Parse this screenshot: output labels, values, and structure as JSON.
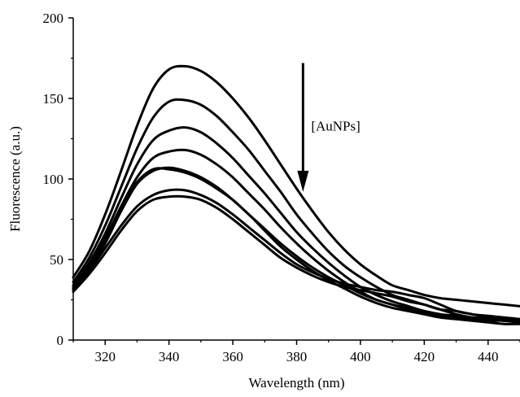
{
  "chart_data": {
    "type": "line",
    "title": "",
    "xlabel": "Wavelength (nm)",
    "ylabel": "Fluorescence (a.u.)",
    "xlim": [
      310,
      450
    ],
    "ylim": [
      0,
      200
    ],
    "xticks": [
      320,
      340,
      360,
      380,
      400,
      420,
      440
    ],
    "yticks": [
      0,
      50,
      100,
      150,
      200
    ],
    "grid": false,
    "legend": "none",
    "annotation": {
      "text": "[AuNPs]",
      "arrow_x": 382,
      "arrow_y_start": 172,
      "arrow_y_end": 92
    },
    "x": [
      310,
      315,
      320,
      325,
      330,
      335,
      340,
      345,
      350,
      355,
      360,
      365,
      370,
      375,
      380,
      385,
      390,
      395,
      400,
      405,
      410,
      415,
      420,
      425,
      430,
      435,
      440,
      445,
      450
    ],
    "series": [
      {
        "values": [
          39,
          55,
          78,
          105,
          133,
          156,
          168,
          170,
          167,
          160,
          150,
          138,
          124,
          109,
          94,
          80,
          67,
          56,
          47,
          40,
          34,
          31,
          28,
          26,
          25,
          24,
          23,
          22,
          21
        ]
      },
      {
        "values": [
          36,
          51,
          71,
          95,
          119,
          138,
          148,
          149,
          146,
          139,
          129,
          118,
          105,
          92,
          78,
          66,
          55,
          46,
          39,
          33,
          28,
          25,
          22,
          19,
          18,
          16,
          15,
          14,
          13
        ]
      },
      {
        "values": [
          34,
          48,
          66,
          88,
          109,
          124,
          130,
          132,
          129,
          122,
          113,
          102,
          91,
          79,
          67,
          57,
          48,
          40,
          33,
          28,
          24,
          21,
          18,
          16,
          15,
          14,
          13,
          12,
          12
        ]
      },
      {
        "values": [
          33,
          46,
          63,
          83,
          101,
          113,
          117,
          118,
          115,
          109,
          101,
          91,
          81,
          70,
          60,
          51,
          43,
          36,
          30,
          25,
          22,
          19,
          17,
          15,
          14,
          13,
          12,
          12,
          11
        ]
      },
      {
        "values": [
          32,
          45,
          62,
          82,
          98,
          106,
          106,
          104,
          100,
          94,
          87,
          78,
          69,
          60,
          52,
          45,
          39,
          34,
          29,
          25,
          22,
          20,
          18,
          16,
          15,
          14,
          13,
          12,
          11
        ]
      },
      {
        "values": [
          31,
          44,
          60,
          80,
          97,
          105,
          107,
          105,
          101,
          95,
          87,
          78,
          68,
          58,
          50,
          43,
          37,
          32,
          27,
          23,
          20,
          18,
          16,
          14,
          13,
          12,
          11,
          10,
          10
        ]
      },
      {
        "values": [
          32,
          43,
          57,
          71,
          83,
          90,
          93,
          93,
          90,
          85,
          78,
          70,
          62,
          54,
          47,
          42,
          38,
          35,
          33,
          31,
          30,
          28,
          26,
          22,
          18,
          16,
          14,
          13,
          13
        ]
      },
      {
        "values": [
          30,
          41,
          54,
          68,
          80,
          87,
          89,
          89,
          87,
          82,
          75,
          67,
          59,
          51,
          45,
          40,
          36,
          33,
          31,
          29,
          27,
          24,
          22,
          19,
          16,
          14,
          13,
          12,
          12
        ]
      }
    ]
  }
}
